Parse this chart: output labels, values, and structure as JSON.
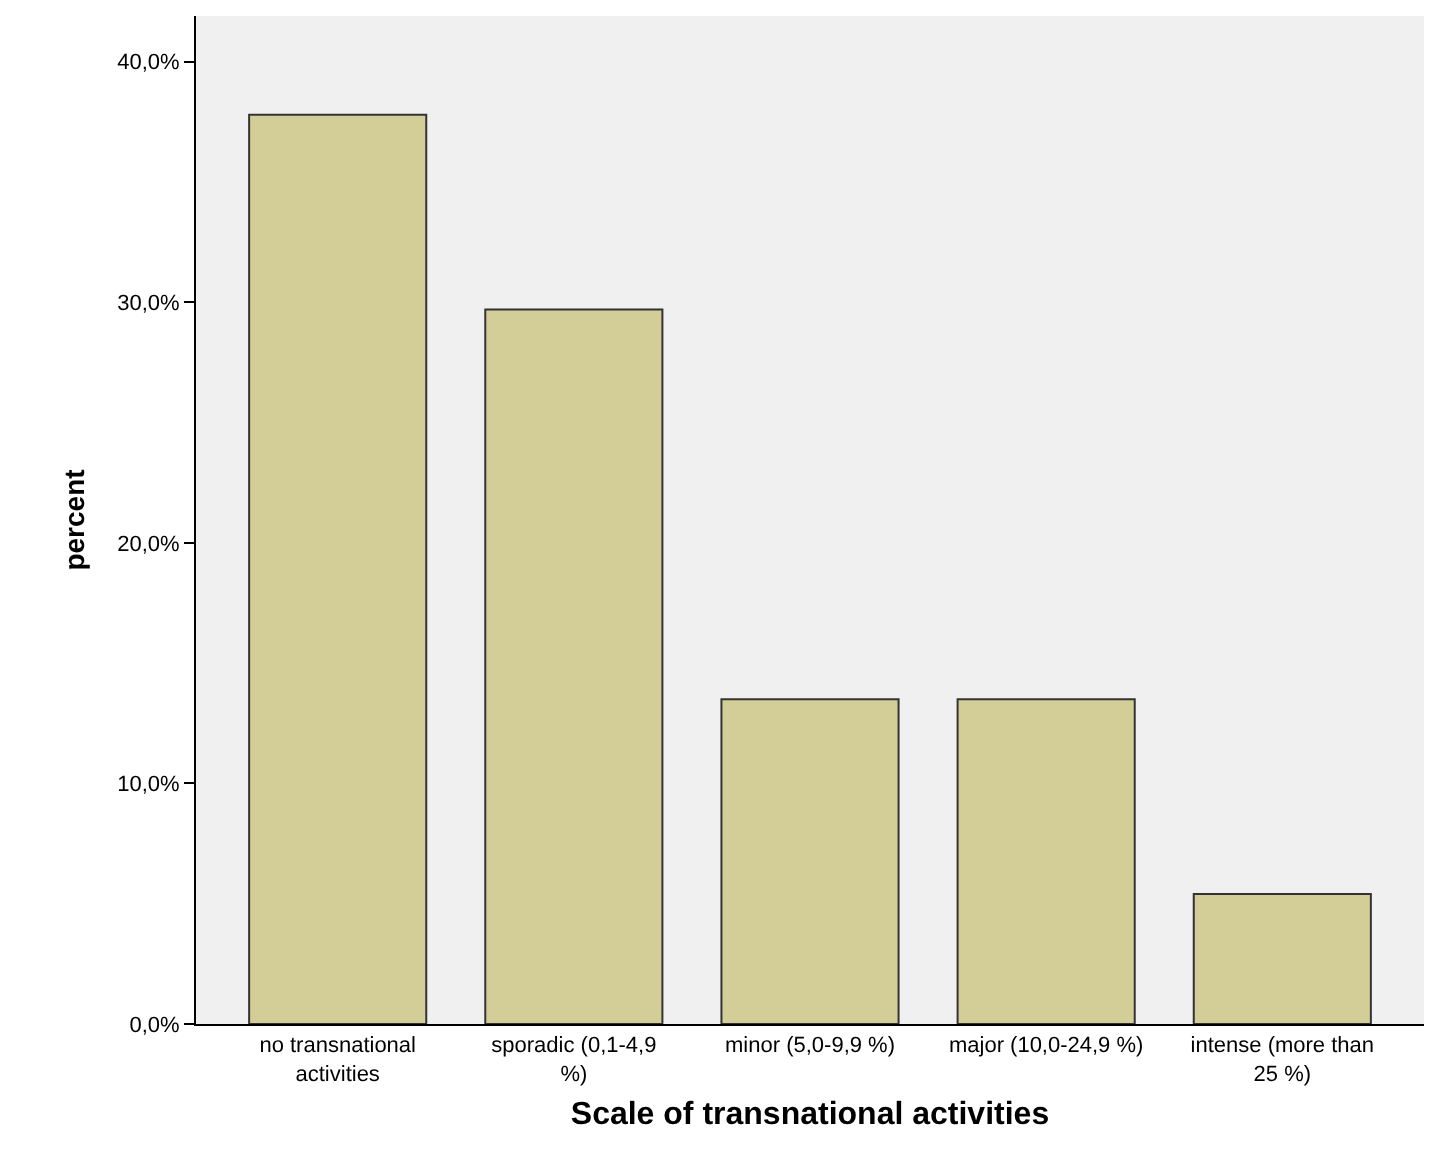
{
  "chart_data": {
    "type": "bar",
    "xlabel": "Scale of transnational activities",
    "ylabel": "percent",
    "categories": [
      "no transnational activities",
      "sporadic (0,1-4,9 %)",
      "minor (5,0-9,9 %)",
      "major (10,0-24,9 %)",
      "intense (more than 25 %)"
    ],
    "values": [
      37.8,
      29.7,
      13.5,
      13.5,
      5.4
    ],
    "color": "#d3ce97",
    "ylim": [
      0,
      41.9
    ],
    "yticks": [
      {
        "value": 0,
        "label": "0,0%"
      },
      {
        "value": 10,
        "label": "10,0%"
      },
      {
        "value": 20,
        "label": "20,0%"
      },
      {
        "value": 30,
        "label": "30,0%"
      },
      {
        "value": 40,
        "label": "40,0%"
      }
    ],
    "grid": false
  }
}
